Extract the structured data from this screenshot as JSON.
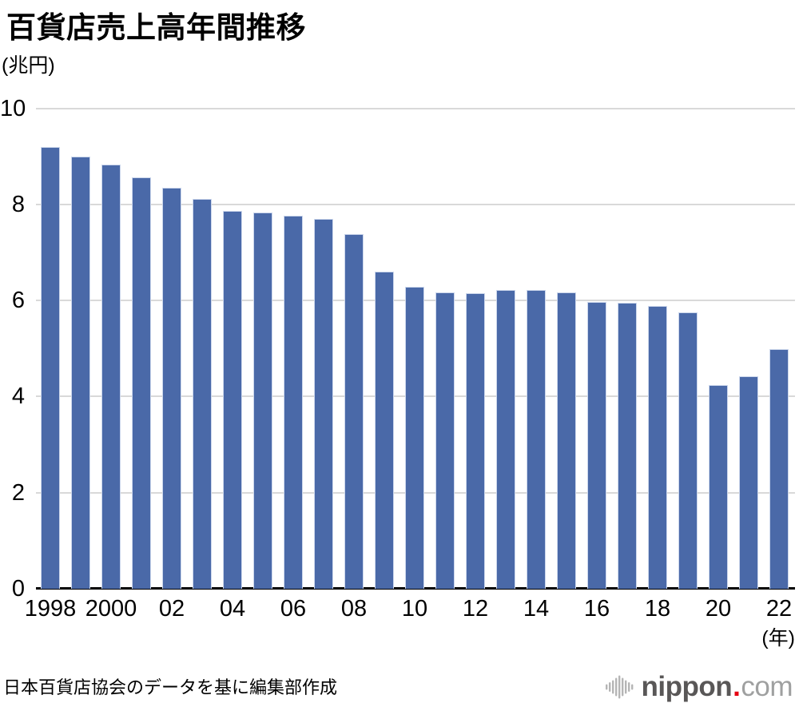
{
  "title": "百貨店売上高年間推移",
  "y_axis_unit": "(兆円)",
  "x_axis_unit": "(年)",
  "source_note": "日本百貨店協会のデータを基に編集部作成",
  "logo": {
    "name": "nippon.com",
    "text_main": "nippon",
    "text_dot": ".",
    "text_suffix": "com"
  },
  "colors": {
    "bar_fill": "#4a69a8",
    "bar_border": "#ccd7ec",
    "gridline": "#d9d9d9",
    "axis_line": "#000000",
    "text": "#000000",
    "logo_main": "#595757",
    "logo_dot": "#e60012",
    "logo_suffix": "#9fa0a0",
    "logo_icon": "#b5b5b5"
  },
  "chart_data": {
    "type": "bar",
    "title": "百貨店売上高年間推移",
    "ylabel": "(兆円)",
    "xlabel": "(年)",
    "ylim": [
      0,
      10
    ],
    "yticks": [
      0,
      2,
      4,
      6,
      8,
      10
    ],
    "grid": true,
    "legend": "none",
    "categories": [
      1998,
      1999,
      2000,
      2001,
      2002,
      2003,
      2004,
      2005,
      2006,
      2007,
      2008,
      2009,
      2010,
      2011,
      2012,
      2013,
      2014,
      2015,
      2016,
      2017,
      2018,
      2019,
      2020,
      2021,
      2022
    ],
    "values": [
      9.2,
      9.0,
      8.83,
      8.57,
      8.35,
      8.12,
      7.87,
      7.83,
      7.76,
      7.7,
      7.38,
      6.6,
      6.29,
      6.17,
      6.15,
      6.22,
      6.21,
      6.17,
      5.97,
      5.95,
      5.88,
      5.76,
      4.24,
      4.43,
      4.99
    ],
    "x_tick_labels": [
      "1998",
      "2000",
      "02",
      "04",
      "06",
      "08",
      "10",
      "12",
      "14",
      "16",
      "18",
      "20",
      "22"
    ]
  }
}
